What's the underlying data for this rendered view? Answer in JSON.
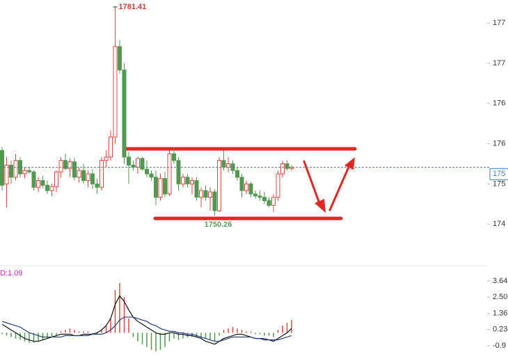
{
  "chart_data": [
    {
      "type": "candlestick",
      "open": [
        1760.0,
        1755.0,
        1757.8,
        1756.0,
        1758.5,
        1756.5,
        1757.0,
        1756.8,
        1754.5,
        1755.5,
        1754.8,
        1754.0,
        1754.6,
        1756.8,
        1758.5,
        1757.3,
        1758.3,
        1756.0,
        1757.0,
        1755.5,
        1756.5,
        1755.0,
        1754.5,
        1758.5,
        1759.0,
        1762.0,
        1775.5,
        1772.0,
        1759.0,
        1757.8,
        1757.5,
        1758.8,
        1757.2,
        1756.5,
        1756.0,
        1753.0,
        1755.8,
        1753.5,
        1759.5,
        1758.5,
        1755.0,
        1756.0,
        1755.0,
        1755.5,
        1753.0,
        1754.0,
        1753.0,
        1753.8,
        1751.0,
        1758.5,
        1757.5,
        1758.0,
        1757.0,
        1756.0,
        1754.0,
        1755.0,
        1753.5,
        1753.2,
        1753.0,
        1752.5,
        1751.8,
        1753.0,
        1756.5,
        1758.0,
        1757.3
      ],
      "high": [
        1760.5,
        1759.0,
        1758.5,
        1759.5,
        1759.0,
        1757.5,
        1757.5,
        1757.0,
        1756.0,
        1756.2,
        1755.5,
        1755.0,
        1757.0,
        1759.0,
        1759.5,
        1758.8,
        1758.9,
        1757.5,
        1758.0,
        1757.0,
        1757.2,
        1755.8,
        1759.0,
        1760.0,
        1763.0,
        1781.41,
        1776.5,
        1773.0,
        1759.8,
        1758.5,
        1759.0,
        1759.0,
        1758.5,
        1757.0,
        1757.0,
        1756.5,
        1756.8,
        1760.0,
        1760.5,
        1759.0,
        1756.5,
        1756.5,
        1756.0,
        1756.0,
        1754.5,
        1754.8,
        1754.5,
        1754.2,
        1759.0,
        1760.0,
        1759.0,
        1758.5,
        1757.5,
        1756.5,
        1755.5,
        1755.3,
        1754.0,
        1754.0,
        1753.8,
        1753.0,
        1753.5,
        1757.0,
        1758.5,
        1758.5,
        1757.8
      ],
      "low": [
        1754.0,
        1751.5,
        1755.0,
        1755.5,
        1756.0,
        1755.8,
        1756.5,
        1754.0,
        1753.8,
        1754.5,
        1753.5,
        1753.2,
        1753.8,
        1756.0,
        1757.0,
        1756.0,
        1755.5,
        1755.2,
        1755.0,
        1754.5,
        1754.2,
        1753.5,
        1754.0,
        1757.5,
        1758.5,
        1761.0,
        1771.5,
        1758.0,
        1755.0,
        1757.0,
        1756.5,
        1757.0,
        1756.0,
        1755.5,
        1751.8,
        1752.5,
        1753.0,
        1753.2,
        1758.0,
        1754.0,
        1754.5,
        1754.5,
        1753.5,
        1752.5,
        1751.5,
        1752.5,
        1751.0,
        1750.26,
        1750.8,
        1757.0,
        1756.8,
        1756.5,
        1755.5,
        1753.0,
        1753.5,
        1753.0,
        1752.8,
        1752.5,
        1752.0,
        1751.5,
        1750.8,
        1752.5,
        1756.0,
        1757.0,
        1757.0
      ],
      "close": [
        1754.8,
        1757.8,
        1756.0,
        1758.5,
        1756.5,
        1757.0,
        1756.8,
        1754.5,
        1755.5,
        1754.8,
        1754.0,
        1754.6,
        1756.8,
        1758.5,
        1757.3,
        1758.3,
        1756.0,
        1757.0,
        1755.5,
        1756.5,
        1755.0,
        1754.5,
        1758.5,
        1759.0,
        1762.0,
        1775.5,
        1772.0,
        1759.0,
        1757.8,
        1757.5,
        1758.8,
        1757.2,
        1756.5,
        1756.0,
        1753.0,
        1755.8,
        1753.5,
        1759.5,
        1758.5,
        1755.0,
        1756.0,
        1755.0,
        1755.5,
        1753.0,
        1754.0,
        1753.0,
        1753.8,
        1751.0,
        1758.5,
        1757.5,
        1758.0,
        1757.0,
        1756.0,
        1754.0,
        1755.0,
        1753.5,
        1753.2,
        1753.0,
        1752.5,
        1751.8,
        1753.0,
        1756.5,
        1758.0,
        1757.3,
        1757.5
      ],
      "up_color": "#e8403a",
      "down_color": "#4f9a4f",
      "ylim": [
        1743.0,
        1782.45
      ],
      "yticks": [
        {
          "value": 1779,
          "label": "177"
        },
        {
          "value": 1773,
          "label": "177"
        },
        {
          "value": 1767,
          "label": "176"
        },
        {
          "value": 1761,
          "label": "176"
        },
        {
          "value": 1755,
          "label": "175"
        },
        {
          "value": 1749,
          "label": "174"
        }
      ],
      "current_price": {
        "value": 1757.5,
        "label": "175"
      },
      "annotations": [
        {
          "text": "1781.41",
          "index": 25,
          "at": "high",
          "color": "#d63b35"
        },
        {
          "text": "1750.26",
          "index": 47,
          "at": "low",
          "color": "#5a9e5a"
        }
      ]
    },
    {
      "type": "macd",
      "label": "D:1.09",
      "histogram": [
        -0.1,
        -0.2,
        -0.3,
        -0.4,
        -0.5,
        -0.6,
        -0.7,
        -0.7,
        -0.6,
        -0.5,
        -0.4,
        -0.3,
        -0.2,
        0.1,
        0.2,
        0.3,
        0.2,
        0.1,
        0.1,
        0.1,
        -0.1,
        -0.1,
        0.2,
        0.5,
        1.0,
        3.0,
        3.5,
        2.5,
        1.0,
        -0.3,
        -0.6,
        -0.8,
        -1.0,
        -1.2,
        -1.3,
        -1.2,
        -1.0,
        -0.6,
        -0.4,
        -0.5,
        -0.4,
        -0.3,
        -0.3,
        -0.3,
        -0.4,
        -0.4,
        -0.5,
        -0.6,
        -0.2,
        0.2,
        0.3,
        0.4,
        0.3,
        0.2,
        0.1,
        0.1,
        -0.1,
        -0.1,
        -0.2,
        -0.2,
        -0.3,
        0.2,
        0.5,
        0.7,
        0.9
      ],
      "series": [
        {
          "color": "#111111",
          "values": [
            0.6,
            0.4,
            0.2,
            0.0,
            -0.2,
            -0.4,
            -0.5,
            -0.6,
            -0.6,
            -0.5,
            -0.4,
            -0.3,
            -0.2,
            -0.1,
            -0.1,
            -0.1,
            -0.2,
            -0.2,
            -0.1,
            -0.1,
            -0.1,
            0.0,
            0.2,
            0.5,
            1.0,
            2.0,
            2.6,
            2.2,
            1.6,
            1.1,
            0.8,
            0.6,
            0.4,
            0.2,
            0.0,
            -0.1,
            -0.1,
            0.0,
            0.0,
            -0.1,
            -0.1,
            -0.2,
            -0.2,
            -0.3,
            -0.4,
            -0.6,
            -0.7,
            -0.8,
            -0.6,
            -0.4,
            -0.3,
            -0.2,
            -0.1,
            -0.1,
            -0.2,
            -0.3,
            -0.4,
            -0.4,
            -0.5,
            -0.5,
            -0.6,
            -0.4,
            -0.2,
            0.0,
            0.3
          ]
        },
        {
          "color": "#1f3c88",
          "values": [
            0.8,
            0.7,
            0.6,
            0.5,
            0.4,
            0.2,
            0.0,
            -0.1,
            -0.2,
            -0.3,
            -0.3,
            -0.3,
            -0.3,
            -0.3,
            -0.2,
            -0.2,
            -0.2,
            -0.2,
            -0.2,
            -0.2,
            -0.1,
            -0.1,
            -0.1,
            0.0,
            0.2,
            0.5,
            0.9,
            1.1,
            1.1,
            1.1,
            1.0,
            0.9,
            0.8,
            0.6,
            0.5,
            0.3,
            0.2,
            0.1,
            0.1,
            0.0,
            0.0,
            -0.1,
            -0.1,
            -0.2,
            -0.3,
            -0.4,
            -0.5,
            -0.6,
            -0.6,
            -0.5,
            -0.4,
            -0.3,
            -0.3,
            -0.3,
            -0.3,
            -0.3,
            -0.4,
            -0.4,
            -0.4,
            -0.5,
            -0.5,
            -0.5,
            -0.4,
            -0.3,
            -0.2
          ]
        }
      ],
      "up_color": "#e8403a",
      "down_color": "#4f9a4f",
      "ylim": [
        -1.74,
        4.57
      ],
      "yticks": [
        3.64,
        {
          "value": 2.5,
          "label": "2.50"
        },
        1.36,
        0.23,
        {
          "value": -0.91,
          "label": "-0.9"
        }
      ]
    }
  ]
}
